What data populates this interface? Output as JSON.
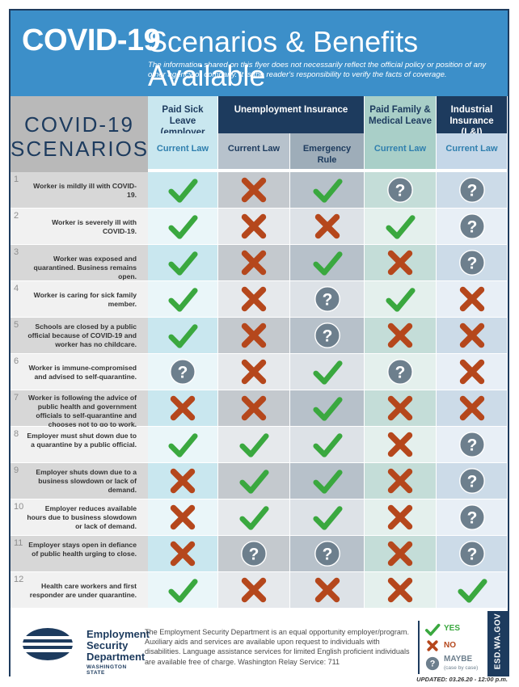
{
  "header": {
    "title_main": "COVID-19",
    "title_rest": "Scenarios & Benefits Available",
    "disclaimer": "The information shared on this flyer does not necessarily reflect the official policy or position of any other agency or company. It is the reader's responsibility to verify the facts of coverage."
  },
  "table_title": {
    "line1": "COVID-19",
    "line2": "SCENARIOS"
  },
  "groups": [
    {
      "label": "Paid Sick Leave (employer paid)"
    },
    {
      "label": "Unemployment Insurance"
    },
    {
      "label": "Paid Family & Medical Leave"
    },
    {
      "label": "Industrial Insurance (L&I)"
    }
  ],
  "subheaders": [
    "Current Law",
    "Current Law",
    "Emergency Rule",
    "Current Law",
    "Current Law"
  ],
  "rows": [
    {
      "num": "1",
      "text": "Worker is mildly ill with COVID-19.",
      "marks": [
        "yes",
        "no",
        "yes",
        "maybe",
        "maybe"
      ]
    },
    {
      "num": "2",
      "text": "Worker is severely ill with COVID-19.",
      "marks": [
        "yes",
        "no",
        "no",
        "yes",
        "maybe"
      ]
    },
    {
      "num": "3",
      "text": "Worker was exposed and quarantined. Business remains open.",
      "marks": [
        "yes",
        "no",
        "yes",
        "no",
        "maybe"
      ]
    },
    {
      "num": "4",
      "text": "Worker is caring for sick family member.",
      "marks": [
        "yes",
        "no",
        "maybe",
        "yes",
        "no"
      ]
    },
    {
      "num": "5",
      "text": "Schools are closed by a public official because of COVID-19 and worker has no childcare.",
      "marks": [
        "yes",
        "no",
        "maybe",
        "no",
        "no"
      ]
    },
    {
      "num": "6",
      "text": "Worker is immune-compromised and advised to self-quarantine.",
      "marks": [
        "maybe",
        "no",
        "yes",
        "maybe",
        "no"
      ]
    },
    {
      "num": "7",
      "text": "Worker is following the advice of public health and government officials to self-quarantine and chooses not to go to work.",
      "marks": [
        "no",
        "no",
        "yes",
        "no",
        "no"
      ]
    },
    {
      "num": "8",
      "text": "Employer must shut down due to a quarantine by a public official.",
      "marks": [
        "yes",
        "yes",
        "yes",
        "no",
        "maybe"
      ]
    },
    {
      "num": "9",
      "text": "Employer shuts down due to a business slowdown or lack of demand.",
      "marks": [
        "no",
        "yes",
        "yes",
        "no",
        "maybe"
      ]
    },
    {
      "num": "10",
      "text": "Employer reduces available hours due to business slowdown or lack of demand.",
      "marks": [
        "no",
        "yes",
        "yes",
        "no",
        "maybe"
      ]
    },
    {
      "num": "11",
      "text": "Employer stays open in defiance of public health urging to close.",
      "marks": [
        "no",
        "maybe",
        "maybe",
        "no",
        "maybe"
      ]
    },
    {
      "num": "12",
      "text": "Health care workers and first responder are under quarantine.",
      "marks": [
        "yes",
        "no",
        "no",
        "no",
        "yes"
      ]
    }
  ],
  "footer": {
    "org_line1": "Employment",
    "org_line2": "Security",
    "org_line3": "Department",
    "org_state": "WASHINGTON STATE",
    "eeo": "The Employment Security Department is an equal opportunity employer/program. Auxiliary aids and services are available upon request to individuals with disabilities. Language assistance services for limited English proficient individuals are available free of charge. Washington Relay Service: 711",
    "legend_yes": "YES",
    "legend_no": "NO",
    "legend_maybe": "MAYBE",
    "legend_maybe_sub": "(case by case)",
    "side_url": "ESD.WA.GOV",
    "updated": "UPDATED: 03.26.20 - 12:00 p.m."
  },
  "colors": {
    "header_blue": "#3c8fc9",
    "navy": "#1d3b5e",
    "check_green": "#3aa83f",
    "x_orange": "#b5471c",
    "question_gray": "#6d7f8d"
  }
}
